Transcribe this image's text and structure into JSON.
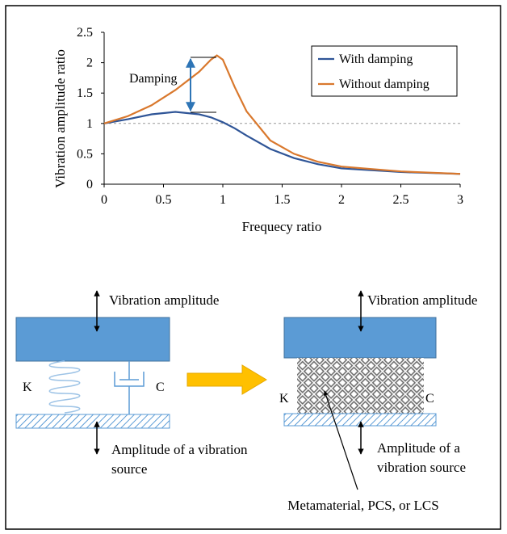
{
  "chart_data": {
    "type": "line",
    "x_label": "Frequecy ratio",
    "y_label": "Vibration amplitude ratio",
    "annotation": "Damping",
    "x": [
      0,
      0.2,
      0.4,
      0.6,
      0.8,
      0.9,
      0.95,
      1.0,
      1.1,
      1.2,
      1.4,
      1.6,
      1.8,
      2.0,
      2.5,
      3.0
    ],
    "series": [
      {
        "name": "With damping",
        "color": "#2f5597",
        "values": [
          1,
          1.07,
          1.15,
          1.19,
          1.15,
          1.1,
          1.06,
          1.02,
          0.92,
          0.8,
          0.58,
          0.43,
          0.33,
          0.26,
          0.2,
          0.17
        ]
      },
      {
        "name": "Without damping",
        "color": "#d9782d",
        "values": [
          1,
          1.12,
          1.3,
          1.55,
          1.85,
          2.05,
          2.12,
          2.05,
          1.6,
          1.2,
          0.72,
          0.5,
          0.37,
          0.29,
          0.21,
          0.17
        ]
      }
    ],
    "xlim": [
      0,
      3
    ],
    "xticks": [
      0,
      0.5,
      1,
      1.5,
      2,
      2.5,
      3
    ],
    "ylim": [
      0,
      2.5
    ],
    "yticks": [
      0,
      0.5,
      1,
      1.5,
      2,
      2.5
    ],
    "reference_line": 1,
    "legend": "top-right"
  },
  "diagram": {
    "left": {
      "top_label": "Vibration  amplitude",
      "spring_label": "K",
      "damper_label": "C",
      "bottom_label_line1": "Amplitude  of a vibration",
      "bottom_label_line2": "source"
    },
    "right": {
      "top_label": "Vibration  amplitude",
      "spring_label": "K",
      "damper_label": "C",
      "bottom_label_line1": "Amplitude  of a",
      "bottom_label_line2": "vibration  source",
      "callout": "Metamaterial,  PCS, or LCS"
    }
  }
}
